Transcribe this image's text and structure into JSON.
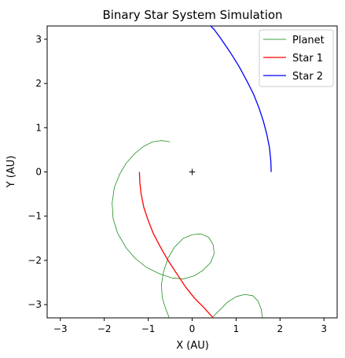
{
  "chart_data": {
    "type": "line",
    "title": "Binary Star System Simulation",
    "xlabel": "X (AU)",
    "ylabel": "Y (AU)",
    "xlim": [
      -3.3,
      3.3
    ],
    "ylim": [
      -3.3,
      3.3
    ],
    "xticks": [
      -3,
      -2,
      -1,
      0,
      1,
      2,
      3
    ],
    "yticks": [
      -3,
      -2,
      -1,
      0,
      1,
      2,
      3
    ],
    "xtick_labels": [
      "−3",
      "−2",
      "−1",
      "0",
      "1",
      "2",
      "3"
    ],
    "ytick_labels": [
      "−3",
      "−2",
      "−1",
      "0",
      "1",
      "2",
      "3"
    ],
    "grid": false,
    "legend_position": "top-right",
    "center_marker": {
      "label": "+",
      "x": 0,
      "y": 0,
      "color": "#000000"
    },
    "series": [
      {
        "name": "Planet",
        "color": "#008000",
        "points": [
          [
            -0.5,
            0.68
          ],
          [
            -0.7,
            0.71
          ],
          [
            -0.9,
            0.68
          ],
          [
            -1.1,
            0.58
          ],
          [
            -1.3,
            0.42
          ],
          [
            -1.5,
            0.2
          ],
          [
            -1.65,
            -0.05
          ],
          [
            -1.77,
            -0.35
          ],
          [
            -1.82,
            -0.7
          ],
          [
            -1.8,
            -1.05
          ],
          [
            -1.7,
            -1.38
          ],
          [
            -1.5,
            -1.72
          ],
          [
            -1.3,
            -1.95
          ],
          [
            -1.05,
            -2.15
          ],
          [
            -0.75,
            -2.3
          ],
          [
            -0.45,
            -2.4
          ],
          [
            -0.2,
            -2.42
          ],
          [
            0.05,
            -2.35
          ],
          [
            0.25,
            -2.22
          ],
          [
            0.42,
            -2.05
          ],
          [
            0.5,
            -1.85
          ],
          [
            0.48,
            -1.65
          ],
          [
            0.38,
            -1.48
          ],
          [
            0.2,
            -1.4
          ],
          [
            0.0,
            -1.42
          ],
          [
            -0.2,
            -1.5
          ],
          [
            -0.4,
            -1.7
          ],
          [
            -0.55,
            -1.95
          ],
          [
            -0.65,
            -2.25
          ],
          [
            -0.7,
            -2.55
          ],
          [
            -0.68,
            -2.85
          ],
          [
            -0.6,
            -3.1
          ],
          [
            -0.52,
            -3.3
          ]
        ]
      },
      {
        "name": "Planet",
        "color": "#008000",
        "points": [
          [
            0.45,
            -3.3
          ],
          [
            0.6,
            -3.15
          ],
          [
            0.8,
            -2.95
          ],
          [
            1.0,
            -2.82
          ],
          [
            1.2,
            -2.77
          ],
          [
            1.38,
            -2.8
          ],
          [
            1.5,
            -2.92
          ],
          [
            1.57,
            -3.1
          ],
          [
            1.6,
            -3.3
          ]
        ]
      },
      {
        "name": "Star 1",
        "color": "#ff0000",
        "points": [
          [
            -1.2,
            0.0
          ],
          [
            -1.19,
            -0.25
          ],
          [
            -1.16,
            -0.5
          ],
          [
            -1.1,
            -0.8
          ],
          [
            -1.0,
            -1.1
          ],
          [
            -0.88,
            -1.4
          ],
          [
            -0.72,
            -1.7
          ],
          [
            -0.55,
            -2.0
          ],
          [
            -0.35,
            -2.3
          ],
          [
            -0.15,
            -2.6
          ],
          [
            0.05,
            -2.85
          ],
          [
            0.25,
            -3.05
          ],
          [
            0.48,
            -3.3
          ]
        ]
      },
      {
        "name": "Star 2",
        "color": "#0000ff",
        "points": [
          [
            1.8,
            0.0
          ],
          [
            1.79,
            0.25
          ],
          [
            1.76,
            0.55
          ],
          [
            1.7,
            0.85
          ],
          [
            1.62,
            1.15
          ],
          [
            1.52,
            1.45
          ],
          [
            1.4,
            1.75
          ],
          [
            1.25,
            2.05
          ],
          [
            1.07,
            2.38
          ],
          [
            0.87,
            2.7
          ],
          [
            0.65,
            3.02
          ],
          [
            0.5,
            3.22
          ],
          [
            0.42,
            3.3
          ]
        ]
      }
    ],
    "legend": [
      {
        "label": "Planet",
        "color": "#008000"
      },
      {
        "label": "Star 1",
        "color": "#ff0000"
      },
      {
        "label": "Star 2",
        "color": "#0000ff"
      }
    ]
  }
}
